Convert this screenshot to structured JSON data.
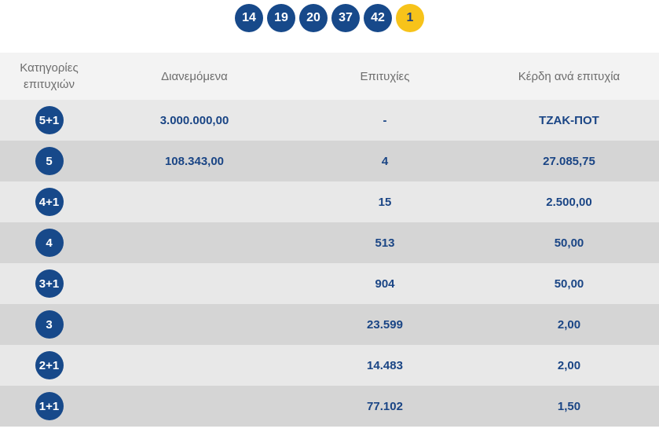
{
  "draw": {
    "numbers": [
      "14",
      "19",
      "20",
      "37",
      "42"
    ],
    "joker": "1"
  },
  "table": {
    "headers": {
      "category": "Κατηγορίες επιτυχιών",
      "distributed": "Διανεμόμενα",
      "winners": "Επιτυχίες",
      "prize": "Κέρδη ανά επιτυχία"
    },
    "rows": [
      {
        "category": "5+1",
        "distributed": "3.000.000,00",
        "winners": "-",
        "prize": "ΤΖΑΚ-ΠΟΤ"
      },
      {
        "category": "5",
        "distributed": "108.343,00",
        "winners": "4",
        "prize": "27.085,75"
      },
      {
        "category": "4+1",
        "distributed": "",
        "winners": "15",
        "prize": "2.500,00"
      },
      {
        "category": "4",
        "distributed": "",
        "winners": "513",
        "prize": "50,00"
      },
      {
        "category": "3+1",
        "distributed": "",
        "winners": "904",
        "prize": "50,00"
      },
      {
        "category": "3",
        "distributed": "",
        "winners": "23.599",
        "prize": "2,00"
      },
      {
        "category": "2+1",
        "distributed": "",
        "winners": "14.483",
        "prize": "2,00"
      },
      {
        "category": "1+1",
        "distributed": "",
        "winners": "77.102",
        "prize": "1,50"
      }
    ]
  },
  "colors": {
    "ball_blue": "#17498a",
    "joker_yellow": "#f7c31a",
    "row_light": "#e8e8e8",
    "row_dark": "#d5d5d5",
    "header_bg": "#f3f3f3"
  }
}
